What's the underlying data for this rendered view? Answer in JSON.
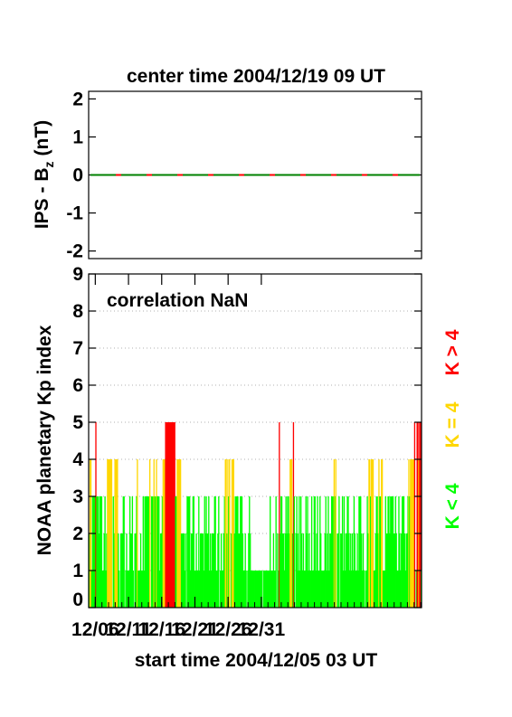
{
  "chart_data": [
    {
      "type": "line",
      "title": "center time 2004/12/19 09 UT",
      "ylabel": "IPS - B",
      "ylabel_subscript": "z",
      "ylabel_unit": "(nT)",
      "ylim": [
        -2.2,
        2.2
      ],
      "yticks": [
        "-2",
        "-1",
        "0",
        "1",
        "2"
      ],
      "grid": false,
      "series": [
        {
          "color": "#008000",
          "dash_color": "#ff0000",
          "style": "dashed",
          "x": [
            0,
            30
          ],
          "y": [
            0,
            0
          ]
        }
      ]
    },
    {
      "type": "bar",
      "ylabel": "NOAA planetary Kp index",
      "annotation": "correlation NaN",
      "ylim": [
        0,
        9
      ],
      "yticks": [
        "0",
        "1",
        "2",
        "3",
        "4",
        "5",
        "6",
        "7",
        "8",
        "9"
      ],
      "xticks": [
        {
          "label": "12/06",
          "day": 1
        },
        {
          "label": "12/11",
          "day": 6
        },
        {
          "label": "12/16",
          "day": 11
        },
        {
          "label": "12/21",
          "day": 16
        },
        {
          "label": "12/26",
          "day": 21
        },
        {
          "label": "12/31",
          "day": 26
        }
      ],
      "xlabel": "start time 2004/12/05 03 UT",
      "grid": "dotted horizontal",
      "legend": {
        "placement": "right",
        "entries": [
          {
            "label": "K < 4",
            "color": "#00ff00"
          },
          {
            "label": "K = 4",
            "color": "#ffd700"
          },
          {
            "label": "K > 4",
            "color": "#ff0000"
          }
        ]
      },
      "interval_hours": 3,
      "start_time": "2004/12/05 03 UT",
      "kp": [
        2,
        4,
        4,
        1,
        3,
        3,
        3,
        3,
        5,
        3,
        3,
        3,
        2,
        3,
        3,
        3,
        1,
        1,
        2,
        3,
        1,
        2,
        4,
        4,
        4,
        4,
        4,
        4,
        0,
        3,
        2,
        4,
        4,
        4,
        4,
        2,
        1,
        0,
        2,
        2,
        2,
        3,
        3,
        0,
        1,
        2,
        1,
        1,
        1,
        3,
        2,
        2,
        3,
        1,
        0,
        2,
        2,
        3,
        4,
        1,
        1,
        1,
        2,
        1,
        1,
        3,
        1,
        3,
        3,
        3,
        3,
        3,
        3,
        4,
        0,
        3,
        3,
        3,
        4,
        3,
        3,
        4,
        3,
        3,
        3,
        1,
        2,
        2,
        3,
        4,
        4,
        4,
        5,
        5,
        5,
        5,
        5,
        5,
        5,
        5,
        5,
        5,
        5,
        5,
        3,
        3,
        4,
        4,
        4,
        4,
        4,
        2,
        2,
        2,
        2,
        1,
        2,
        0,
        3,
        3,
        3,
        3,
        1,
        2,
        2,
        3,
        3,
        1,
        1,
        2,
        1,
        1,
        3,
        1,
        2,
        2,
        2,
        2,
        1,
        3,
        2,
        3,
        2,
        2,
        3,
        1,
        2,
        1,
        2,
        2,
        2,
        3,
        3,
        1,
        1,
        2,
        3,
        0,
        1,
        2,
        1,
        1,
        2,
        3,
        4,
        4,
        2,
        4,
        3,
        4,
        0,
        2,
        4,
        4,
        4,
        2,
        3,
        3,
        3,
        3,
        2,
        2,
        3,
        3,
        3,
        2,
        1,
        1,
        2,
        1,
        0,
        1,
        2,
        3,
        2,
        1,
        1,
        1,
        1,
        1,
        1,
        1,
        1,
        1,
        1,
        1,
        1,
        1,
        1,
        0,
        1,
        1,
        1,
        1,
        1,
        1,
        1,
        1,
        3,
        1,
        1,
        1,
        2,
        1,
        1,
        3,
        0,
        2,
        1,
        5,
        2,
        3,
        3,
        2,
        2,
        1,
        2,
        3,
        2,
        3,
        3,
        2,
        4,
        4,
        4,
        2,
        5,
        3,
        0,
        2,
        3,
        2,
        1,
        3,
        1,
        3,
        2,
        1,
        2,
        1,
        1,
        3,
        2,
        3,
        1,
        2,
        1,
        1,
        3,
        1,
        1,
        3,
        3,
        1,
        2,
        3,
        1,
        1,
        3,
        2,
        1,
        1,
        1,
        1,
        2,
        3,
        1,
        2,
        3,
        1,
        2,
        2,
        3,
        3,
        3,
        4,
        3,
        4,
        0,
        2,
        2,
        3,
        0,
        2,
        2,
        3,
        1,
        3,
        1,
        2,
        2,
        3,
        3,
        2,
        1,
        2,
        1,
        2,
        1,
        3,
        2,
        1,
        1,
        2,
        1,
        3,
        3,
        3,
        2,
        1,
        2,
        1,
        0,
        1,
        1,
        3,
        2,
        4,
        4,
        3,
        4,
        4,
        4,
        1,
        1,
        2,
        3,
        3,
        2,
        4,
        3,
        3,
        4,
        4,
        1,
        1,
        1,
        3,
        2,
        2,
        3,
        3,
        2,
        3,
        3,
        3,
        3,
        2,
        2,
        3,
        2,
        1,
        1,
        3,
        2,
        1,
        2,
        3,
        3,
        3,
        2,
        1,
        2,
        2,
        3,
        4,
        3,
        4,
        4,
        4,
        4,
        4,
        5,
        0,
        1,
        5,
        5,
        4,
        5,
        5,
        1
      ]
    }
  ]
}
